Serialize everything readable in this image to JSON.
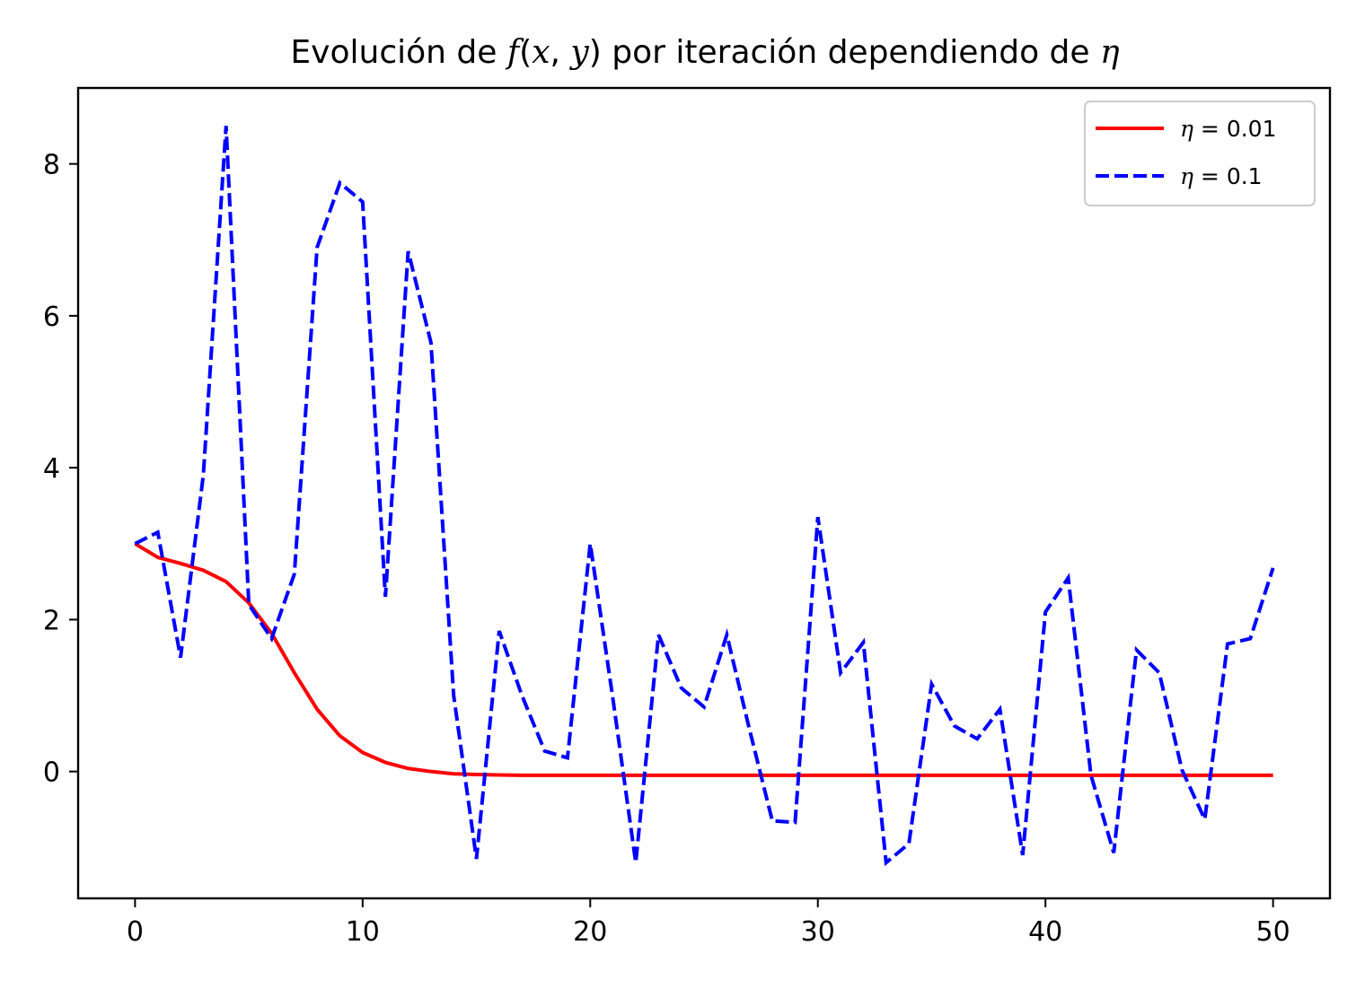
{
  "chart_data": {
    "type": "line",
    "title": {
      "prefix": "Evolución de ",
      "fn": "f",
      "args_open": "(",
      "arg1": "x",
      "sep": ", ",
      "arg2": "y",
      "args_close": ")",
      "middle": " por iteración dependiendo de ",
      "symbol": "η"
    },
    "xlabel": "",
    "ylabel": "",
    "xlim": [
      -2.5,
      52.5
    ],
    "ylim": [
      -1.67,
      9.0
    ],
    "xticks": [
      0,
      10,
      20,
      30,
      40,
      50
    ],
    "yticks": [
      0,
      2,
      4,
      6,
      8
    ],
    "grid": false,
    "legend_position": "top-right",
    "series": [
      {
        "name": "η = 0.01",
        "legend_symbol": "η",
        "legend_eq": " = 0.01",
        "color": "#ff0000",
        "style": "solid",
        "x": [
          0,
          1,
          2,
          3,
          4,
          5,
          6,
          7,
          8,
          9,
          10,
          11,
          12,
          13,
          14,
          15,
          16,
          17,
          18,
          19,
          20,
          21,
          22,
          23,
          24,
          25,
          26,
          27,
          28,
          29,
          30,
          31,
          32,
          33,
          34,
          35,
          36,
          37,
          38,
          39,
          40,
          41,
          42,
          43,
          44,
          45,
          46,
          47,
          48,
          49,
          50
        ],
        "y": [
          3.0,
          2.82,
          2.74,
          2.65,
          2.5,
          2.22,
          1.82,
          1.3,
          0.82,
          0.47,
          0.25,
          0.12,
          0.04,
          0.0,
          -0.03,
          -0.04,
          -0.045,
          -0.05,
          -0.05,
          -0.05,
          -0.05,
          -0.05,
          -0.05,
          -0.05,
          -0.05,
          -0.05,
          -0.05,
          -0.05,
          -0.05,
          -0.05,
          -0.05,
          -0.05,
          -0.05,
          -0.05,
          -0.05,
          -0.05,
          -0.05,
          -0.05,
          -0.05,
          -0.05,
          -0.05,
          -0.05,
          -0.05,
          -0.05,
          -0.05,
          -0.05,
          -0.05,
          -0.05,
          -0.05,
          -0.05,
          -0.05
        ]
      },
      {
        "name": "η = 0.1",
        "legend_symbol": "η",
        "legend_eq": " = 0.1",
        "color": "#0000ff",
        "style": "dashed",
        "x": [
          0,
          1,
          2,
          3,
          4,
          5,
          6,
          7,
          8,
          9,
          10,
          11,
          12,
          13,
          14,
          15,
          16,
          17,
          18,
          19,
          20,
          21,
          22,
          23,
          24,
          25,
          26,
          27,
          28,
          29,
          30,
          31,
          32,
          33,
          34,
          35,
          36,
          37,
          38,
          39,
          40,
          41,
          42,
          43,
          44,
          45,
          46,
          47,
          48,
          49,
          50
        ],
        "y": [
          3.0,
          3.15,
          1.5,
          3.9,
          8.5,
          2.2,
          1.75,
          2.6,
          6.9,
          7.75,
          7.5,
          2.3,
          6.85,
          5.65,
          1.0,
          -1.15,
          1.85,
          1.0,
          0.27,
          0.18,
          3.0,
          0.95,
          -1.2,
          1.8,
          1.1,
          0.85,
          1.8,
          0.55,
          -0.65,
          -0.67,
          3.35,
          1.3,
          1.7,
          -1.2,
          -0.95,
          1.15,
          0.6,
          0.43,
          0.82,
          -1.1,
          2.1,
          2.55,
          -0.05,
          -1.07,
          1.6,
          1.3,
          0.02,
          -0.63,
          1.68,
          1.75,
          2.68
        ]
      }
    ]
  }
}
